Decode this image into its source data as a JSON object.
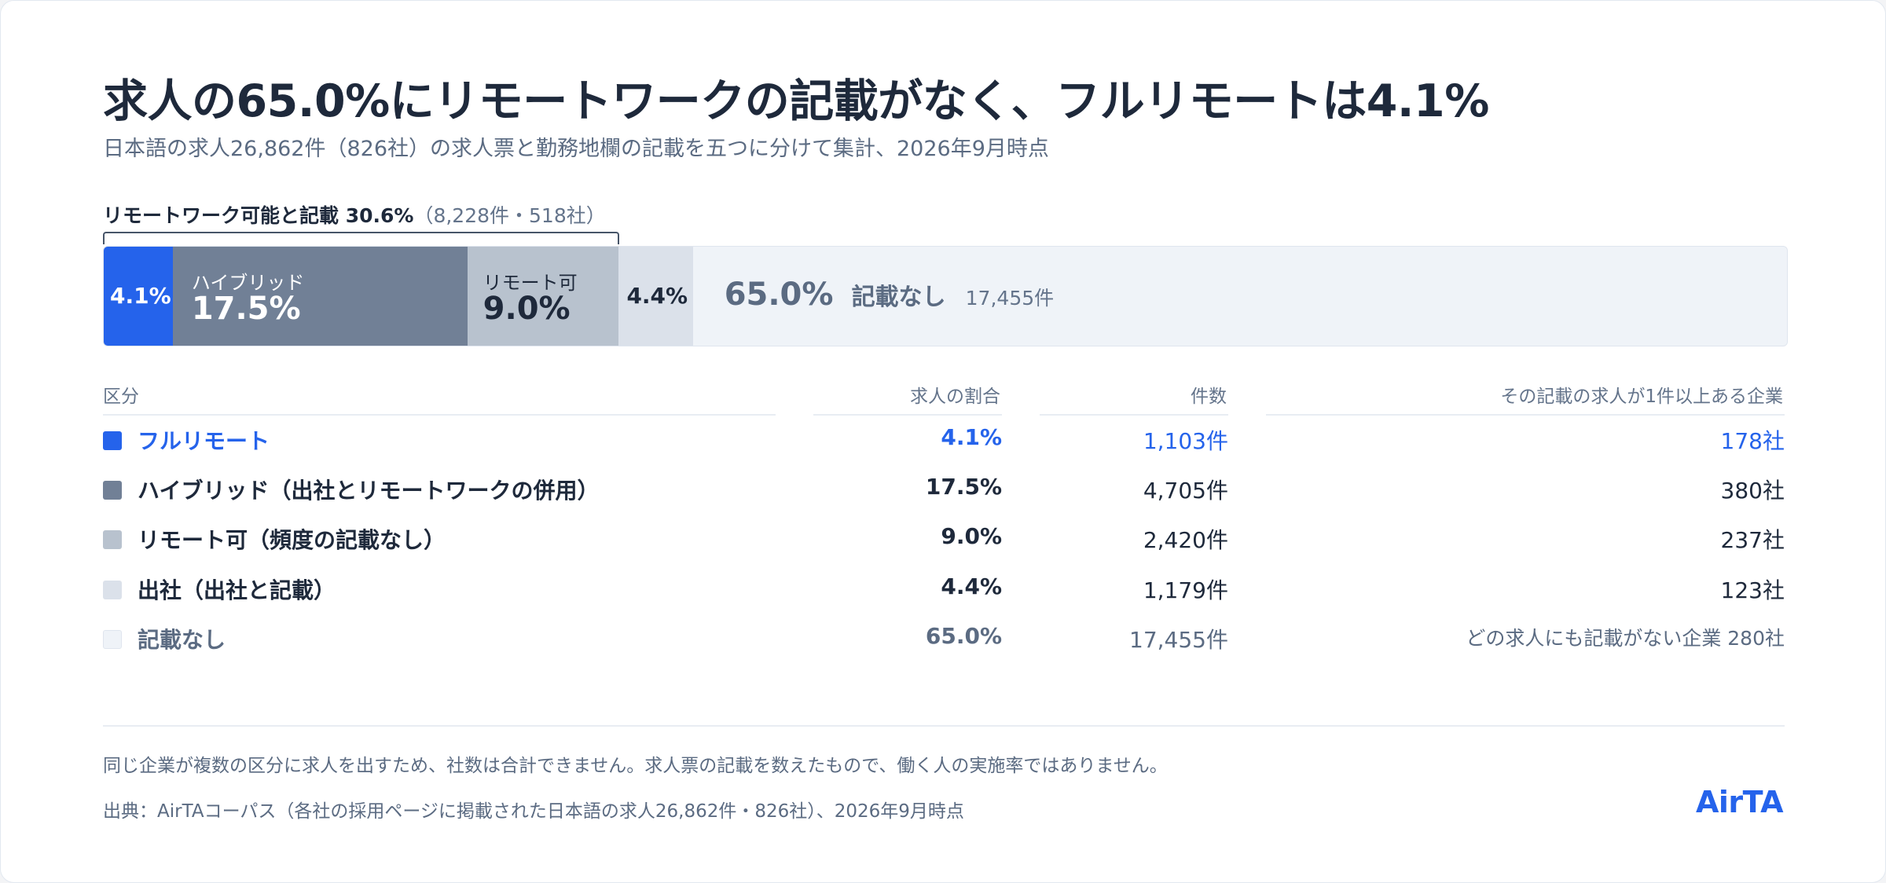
{
  "header": {
    "title": "求人の65.0%にリモートワークの記載がなく、フルリモートは4.1%",
    "subtitle": "日本語の求人26,862件（826社）の求人票と勤務地欄の記載を五つに分けて集計、2026年9月時点"
  },
  "bracket": {
    "label_strong": "リモートワーク可能と記載 30.6%",
    "label_muted": "（8,228件・518社）",
    "share_pct": 30.6
  },
  "bar": {
    "full_remote_pct": "4.1%",
    "hybrid_label": "ハイブリッド",
    "hybrid_pct": "17.5%",
    "remote_ok_label": "リモート可",
    "remote_ok_pct": "9.0%",
    "office_pct": "4.4%",
    "none_pct": "65.0%",
    "none_label": "記載なし",
    "none_count": "17,455件"
  },
  "chart_data": {
    "type": "bar",
    "orientation": "horizontal-stacked-100",
    "categories": [
      "フルリモート",
      "ハイブリッド（出社とリモートワークの併用）",
      "リモート可（頻度の記載なし）",
      "出社（出社と記載）",
      "記載なし"
    ],
    "values": [
      4.1,
      17.5,
      9.0,
      4.4,
      65.0
    ],
    "counts": [
      1103,
      4705,
      2420,
      1179,
      17455
    ],
    "companies": [
      178,
      380,
      237,
      123,
      280
    ],
    "colors": [
      "#2563eb",
      "#718096",
      "#b8c2ce",
      "#dbe1ea",
      "#eff3f8"
    ],
    "xlim": [
      0,
      100
    ],
    "grid": false
  },
  "table": {
    "headers": {
      "category": "区分",
      "share": "求人の割合",
      "count": "件数",
      "companies": "その記載の求人が1件以上ある企業"
    },
    "rows": [
      {
        "category": "フルリモート",
        "share": "4.1%",
        "count": "1,103件",
        "companies": "178社",
        "color": "#2563eb",
        "text_color": "#2563eb"
      },
      {
        "category": "ハイブリッド（出社とリモートワークの併用）",
        "share": "17.5%",
        "count": "4,705件",
        "companies": "380社",
        "color": "#718096",
        "text_color": "#1e293b"
      },
      {
        "category": "リモート可（頻度の記載なし）",
        "share": "9.0%",
        "count": "2,420件",
        "companies": "237社",
        "color": "#b8c2ce",
        "text_color": "#1e293b"
      },
      {
        "category": "出社（出社と記載）",
        "share": "4.4%",
        "count": "1,179件",
        "companies": "123社",
        "color": "#dbe1ea",
        "text_color": "#1e293b"
      },
      {
        "category": "記載なし",
        "share": "65.0%",
        "count": "17,455件",
        "companies": "どの求人にも記載がない企業 280社",
        "color": "#eff3f8",
        "text_color": "#5b6b82"
      }
    ]
  },
  "footer": {
    "note": "同じ企業が複数の区分に求人を出すため、社数は合計できません。求人票の記載を数えたもので、働く人の実施率ではありません。",
    "source": "出典：AirTAコーパス（各社の採用ページに掲載された日本語の求人26,862件・826社）、2026年9月時点",
    "brand": "AirTA"
  }
}
